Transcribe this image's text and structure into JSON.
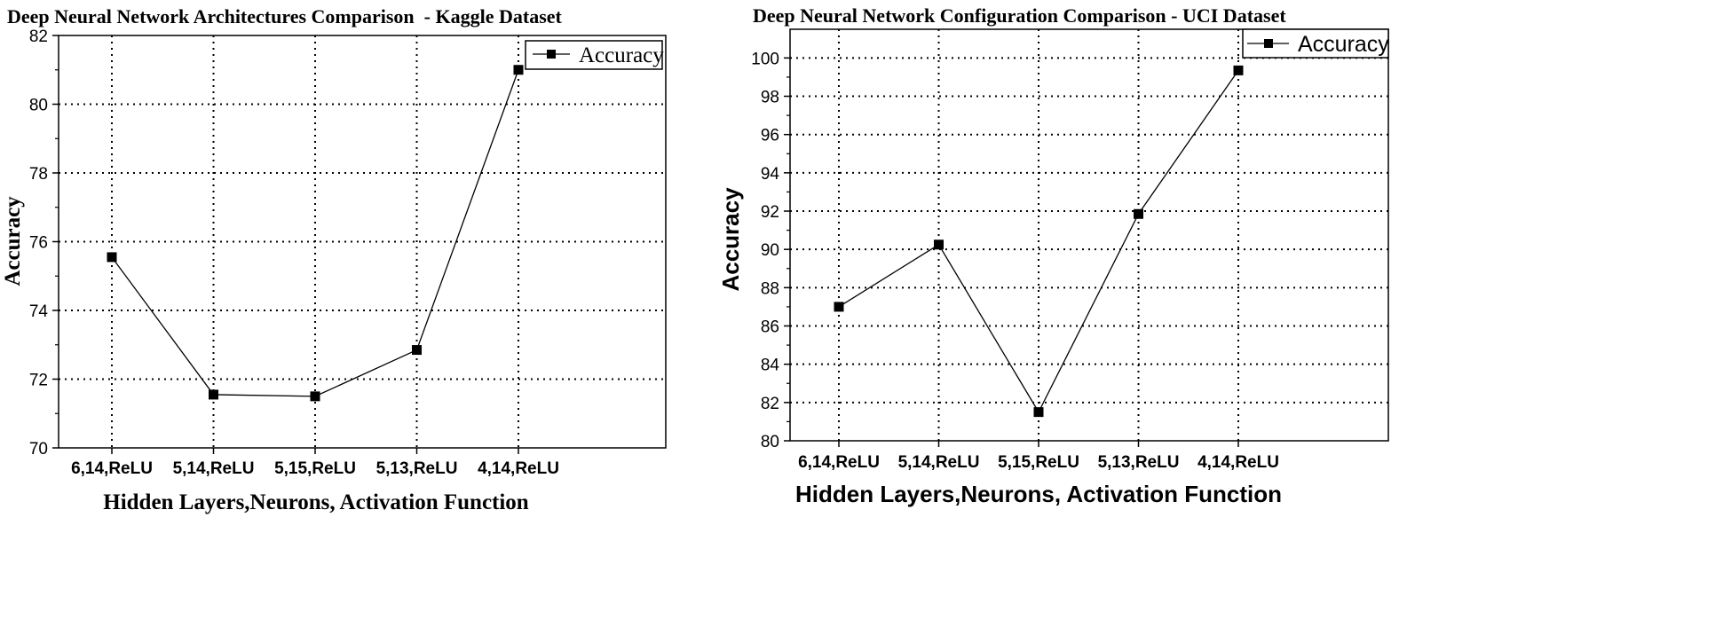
{
  "chart_data": [
    {
      "type": "line",
      "title": "Deep Neural Network Architectures Comparison  - Kaggle Dataset",
      "xlabel": "Hidden Layers,Neurons, Activation Function",
      "ylabel": "Accuracy",
      "categories": [
        "6,14,ReLU",
        "5,14,ReLU",
        "5,15,ReLU",
        "5,13,ReLU",
        "4,14,ReLU"
      ],
      "series": [
        {
          "name": "Accuracy",
          "values": [
            75.55,
            71.55,
            71.5,
            72.85,
            81.0
          ]
        }
      ],
      "ylim": [
        70,
        82
      ],
      "yticks": [
        70,
        72,
        74,
        76,
        78,
        80,
        82
      ],
      "grid": true,
      "legend": "top-right"
    },
    {
      "type": "line",
      "title": "Deep Neural Network Configuration Comparison - UCI Dataset",
      "xlabel": "Hidden Layers,Neurons, Activation Function",
      "ylabel": "Accuracy",
      "categories": [
        "6,14,ReLU",
        "5,14,ReLU",
        "5,15,ReLU",
        "5,13,ReLU",
        "4,14,ReLU"
      ],
      "series": [
        {
          "name": "Accuracy",
          "values": [
            87.0,
            90.25,
            81.5,
            91.85,
            99.35
          ]
        }
      ],
      "ylim": [
        80,
        101.5
      ],
      "yticks": [
        80,
        82,
        84,
        86,
        88,
        90,
        92,
        94,
        96,
        98,
        100
      ],
      "grid": true,
      "legend": "top-right"
    }
  ]
}
